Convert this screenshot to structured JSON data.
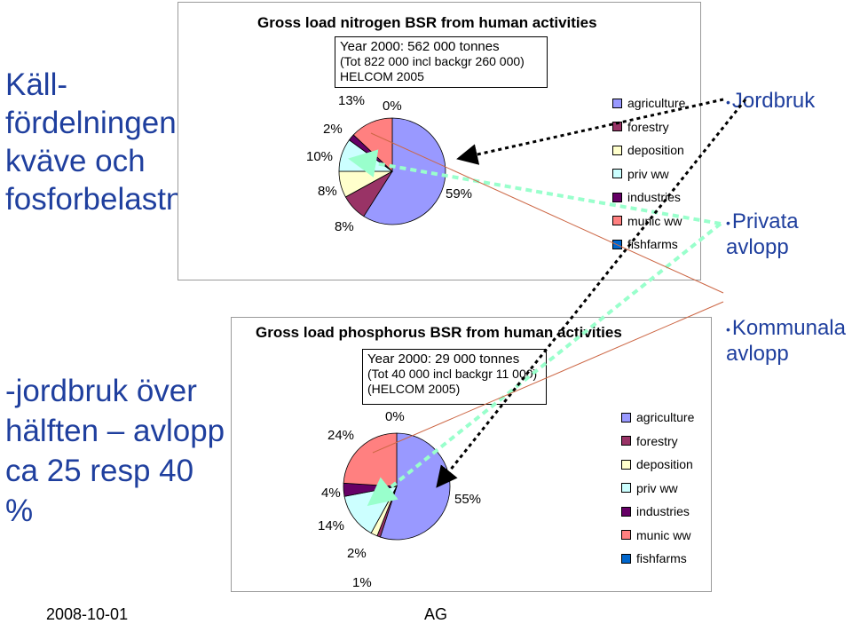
{
  "left_panel": {
    "title": "Käll-fördelningen av kväve och fosforbelastningen",
    "subtitle": "-jordbruk över hälften – avlopp ca 25 resp 40 %"
  },
  "bullets": [
    "Jordbruk",
    "Privata avlopp",
    "Kommunala avlopp"
  ],
  "footer": {
    "date": "2008-10-01",
    "author": "AG"
  },
  "colors": {
    "agriculture": "#9999ff",
    "forestry": "#993366",
    "deposition": "#ffffcc",
    "priv_ww": "#ccffff",
    "industries": "#660066",
    "munic_ww": "#ff8080",
    "fishfarms": "#0066cc",
    "accent_text": "#1f3f9e",
    "arrow_green": "#99ffcc"
  },
  "chart_data": [
    {
      "type": "pie",
      "title": "Gross load nitrogen BSR from human activities",
      "info_lines": [
        "Year 2000: 562 000 tonnes",
        "(Tot 822 000 incl backgr 260 000)",
        "HELCOM 2005"
      ],
      "categories": [
        "agriculture",
        "forestry",
        "deposition",
        "priv ww",
        "industries",
        "munic ww",
        "fishfarms"
      ],
      "values": [
        59,
        8,
        8,
        10,
        2,
        13,
        0
      ],
      "data_labels": [
        "59%",
        "8%",
        "8%",
        "10%",
        "2%",
        "13%",
        "0%"
      ],
      "legend": [
        "agriculture",
        "forestry",
        "deposition",
        "priv ww",
        "industries",
        "munic ww",
        "fishfarms"
      ],
      "legend_position": "right"
    },
    {
      "type": "pie",
      "title": "Gross load phosphorus BSR from human activities",
      "info_lines": [
        "Year 2000: 29 000 tonnes",
        "(Tot 40 000 incl backgr 11 000)",
        "(HELCOM 2005)"
      ],
      "categories": [
        "agriculture",
        "forestry",
        "deposition",
        "priv ww",
        "industries",
        "munic ww",
        "fishfarms"
      ],
      "values": [
        55,
        1,
        2,
        14,
        4,
        24,
        0
      ],
      "data_labels": [
        "55%",
        "1%",
        "2%",
        "14%",
        "4%",
        "24%",
        "0%"
      ],
      "legend": [
        "agriculture",
        "forestry",
        "deposition",
        "priv ww",
        "industries",
        "munic ww",
        "fishfarms"
      ],
      "legend_position": "right"
    }
  ]
}
